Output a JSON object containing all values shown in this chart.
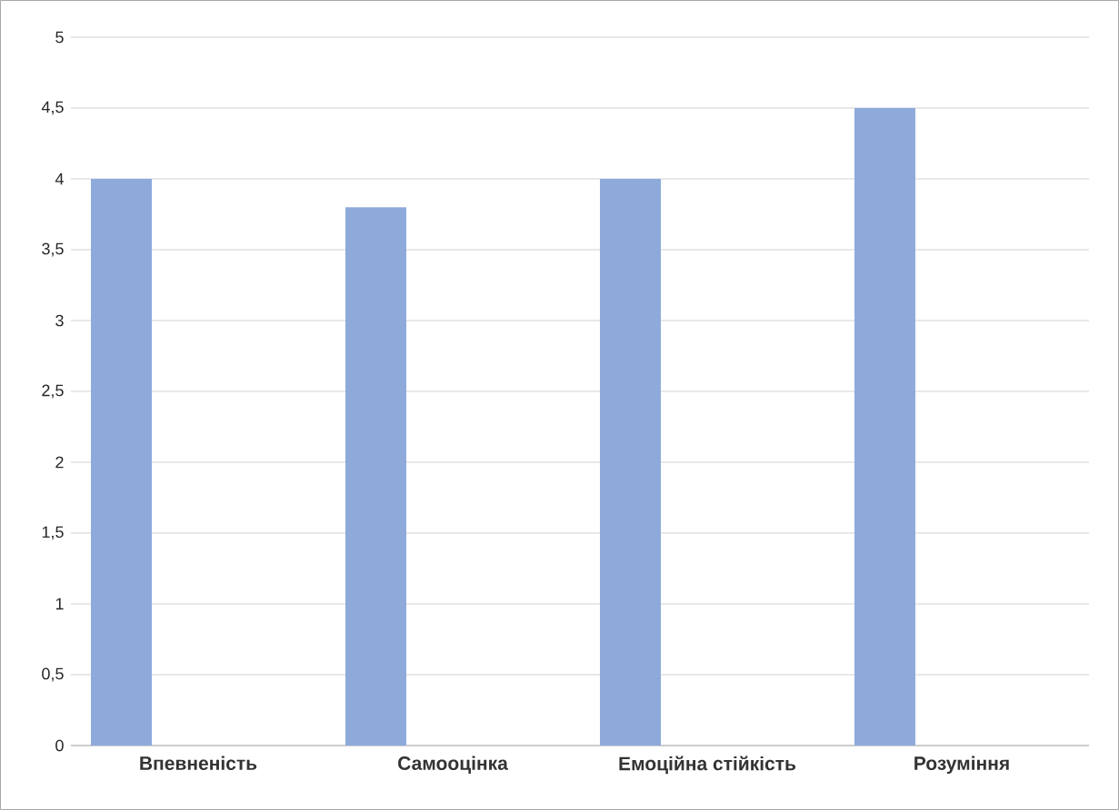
{
  "chart_data": {
    "type": "bar",
    "categories": [
      "Впевненість",
      "Самооцінка",
      "Емоційна стійкість",
      "Розуміння"
    ],
    "values": [
      4,
      3.8,
      4,
      4.5
    ],
    "color": "#8eaadb",
    "ylim": [
      0,
      5
    ],
    "yticks": [
      0,
      {
        "value": 0.5,
        "label": "0,5"
      },
      1,
      {
        "value": 1.5,
        "label": "1,5"
      },
      2,
      {
        "value": 2.5,
        "label": "2,5"
      },
      3,
      {
        "value": 3.5,
        "label": "3,5"
      },
      4,
      {
        "value": 4.5,
        "label": "4,5"
      },
      5
    ],
    "grid": "y"
  }
}
